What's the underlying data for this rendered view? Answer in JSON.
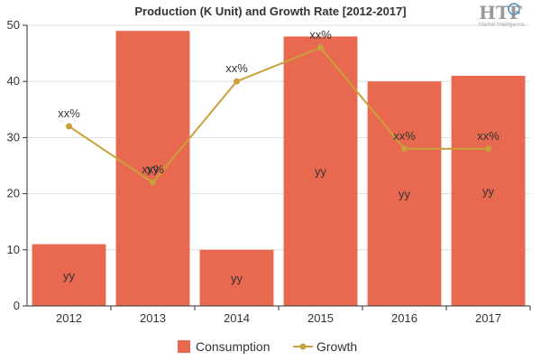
{
  "chart_data": {
    "type": "bar",
    "title": "Production (K Unit) and Growth Rate [2012-2017]",
    "categories": [
      "2012",
      "2013",
      "2014",
      "2015",
      "2016",
      "2017"
    ],
    "ylim": [
      0,
      50
    ],
    "yticks": [
      "0",
      "10",
      "20",
      "30",
      "40",
      "50"
    ],
    "series": [
      {
        "name": "Consumption",
        "type": "bar",
        "values": [
          11,
          49,
          10,
          48,
          40,
          41
        ],
        "labels": [
          "yy",
          "yy",
          "yy",
          "yy",
          "yy",
          "yy"
        ],
        "color": "#E8694F"
      },
      {
        "name": "Growth",
        "type": "line",
        "values": [
          32,
          22,
          40,
          46,
          28,
          28
        ],
        "labels": [
          "xx%",
          "xx%",
          "xx%",
          "xx%",
          "xx%",
          "xx%"
        ],
        "color": "#C9A03A"
      }
    ],
    "grid": "horizontal",
    "legend_position": "bottom"
  },
  "logo": {
    "name": "HTF",
    "tagline": "Market Intelligence"
  }
}
